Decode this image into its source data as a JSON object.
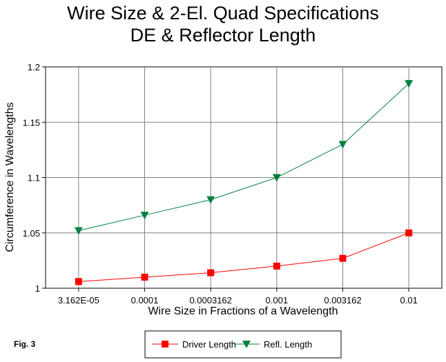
{
  "figure_label": "Fig. 3",
  "chart_data": {
    "type": "line",
    "title": [
      "Wire Size & 2-El. Quad Specifications",
      "DE & Reflector Length"
    ],
    "xlabel": "Wire Size in Fractions of a Wavelength",
    "ylabel": "Circumference in Wavelengths",
    "categories": [
      "3.162E-05",
      "0.0001",
      "0.0003162",
      "0.001",
      "0.003162",
      "0.01"
    ],
    "ylim": [
      1,
      1.2
    ],
    "yticks": [
      "1",
      "1.05",
      "1.1",
      "1.15",
      "1.2"
    ],
    "ytick_values": [
      1,
      1.05,
      1.1,
      1.15,
      1.2
    ],
    "grid": true,
    "legend_position": "bottom",
    "series": [
      {
        "name": "Driver Length",
        "color": "#ff0000",
        "line_color": "#ff0000",
        "marker": "square",
        "values": [
          1.006,
          1.01,
          1.014,
          1.02,
          1.027,
          1.05
        ]
      },
      {
        "name": "Refl. Length",
        "color": "#008040",
        "line_color": "#008040",
        "marker": "triangle-down",
        "values": [
          1.052,
          1.066,
          1.08,
          1.1,
          1.13,
          1.185
        ]
      }
    ]
  }
}
